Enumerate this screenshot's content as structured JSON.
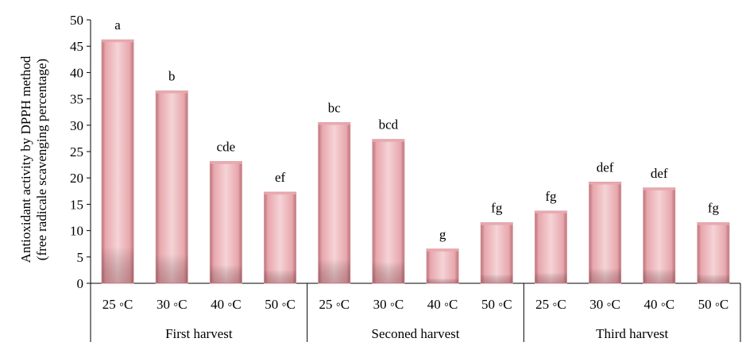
{
  "chart_data": {
    "type": "bar",
    "ylabel_lines": [
      "Antioxidant activity by DPPH method",
      "(free radicale scavenging percentage)"
    ],
    "ylim": [
      0,
      50
    ],
    "yticks": [
      0,
      5,
      10,
      15,
      20,
      25,
      30,
      35,
      40,
      45,
      50
    ],
    "grid": false,
    "groups": [
      {
        "name": "First harvest",
        "categories": [
          "25 ◦C",
          "30 ◦C",
          "40 ◦C",
          "50 ◦C"
        ],
        "values": [
          46.2,
          36.5,
          23.1,
          17.3
        ],
        "letters": [
          "a",
          "b",
          "cde",
          "ef"
        ]
      },
      {
        "name": "Seconed harvest",
        "categories": [
          "25 ◦C",
          "30 ◦C",
          "40 ◦C",
          "50 ◦C"
        ],
        "values": [
          30.5,
          27.3,
          6.5,
          11.5
        ],
        "letters": [
          "bc",
          "bcd",
          "g",
          "fg"
        ]
      },
      {
        "name": "Third harvest",
        "categories": [
          "25 ◦C",
          "30 ◦C",
          "40 ◦C",
          "50 ◦C"
        ],
        "values": [
          13.7,
          19.2,
          18.1,
          11.5
        ],
        "letters": [
          "fg",
          "def",
          "def",
          "fg"
        ]
      }
    ],
    "bar_colors": {
      "edge": "#f4d3d6",
      "center": "#e8a7ad",
      "dark": "#b8737a",
      "outline": "#d9959c"
    }
  }
}
